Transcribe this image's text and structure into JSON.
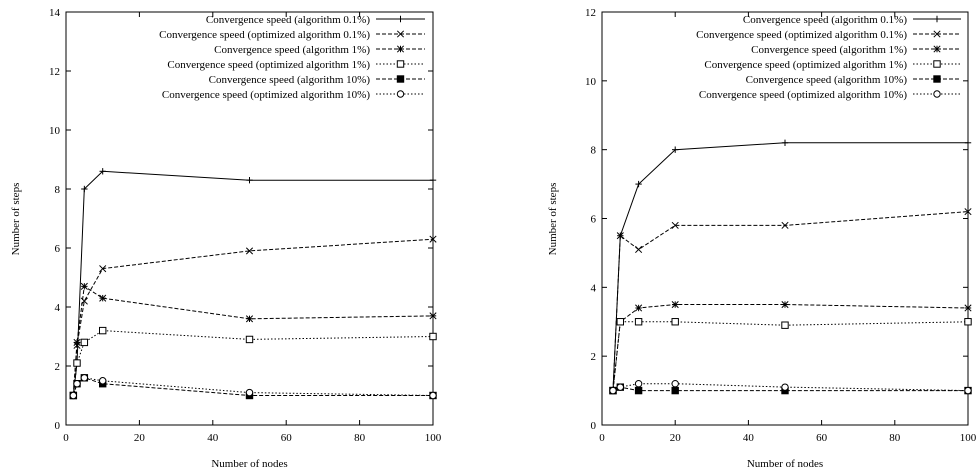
{
  "chart_data": [
    {
      "type": "line",
      "xlabel": "Number of nodes",
      "ylabel": "Number of steps",
      "xlim": [
        0,
        100
      ],
      "ylim": [
        0,
        14
      ],
      "xticks": [
        "0",
        "20",
        "40",
        "60",
        "80",
        "100"
      ],
      "yticks": [
        "0",
        "2",
        "4",
        "6",
        "8",
        "10",
        "12",
        "14"
      ],
      "legend_position": "top-right",
      "series": [
        {
          "name": "Convergence speed (algorithm 0.1%)",
          "marker": "plus",
          "dash": "solid",
          "x": [
            2,
            3,
            5,
            10,
            50,
            100
          ],
          "y": [
            1.0,
            2.1,
            8.0,
            8.6,
            8.3,
            8.3
          ]
        },
        {
          "name": "Convergence speed (optimized algorithm 0.1%)",
          "marker": "cross",
          "dash": "dashed",
          "x": [
            2,
            3,
            5,
            10,
            50,
            100
          ],
          "y": [
            1.0,
            2.7,
            4.2,
            5.3,
            5.9,
            6.3
          ]
        },
        {
          "name": "Convergence speed (algorithm 1%)",
          "marker": "star",
          "dash": "dashed",
          "x": [
            2,
            3,
            5,
            10,
            50,
            100
          ],
          "y": [
            1.0,
            2.8,
            4.7,
            4.3,
            3.6,
            3.7
          ]
        },
        {
          "name": "Convergence speed (optimized algorithm 1%)",
          "marker": "square",
          "dash": "dotted",
          "x": [
            2,
            3,
            5,
            10,
            50,
            100
          ],
          "y": [
            1.0,
            2.1,
            2.8,
            3.2,
            2.9,
            3.0
          ]
        },
        {
          "name": "Convergence speed (algorithm 10%)",
          "marker": "filled-square",
          "dash": "dashed",
          "x": [
            2,
            3,
            5,
            10,
            50,
            100
          ],
          "y": [
            1.0,
            1.4,
            1.6,
            1.4,
            1.0,
            1.0
          ]
        },
        {
          "name": "Convergence speed (optimized algorithm 10%)",
          "marker": "circle",
          "dash": "dotted",
          "x": [
            2,
            3,
            5,
            10,
            50,
            100
          ],
          "y": [
            1.0,
            1.4,
            1.6,
            1.5,
            1.1,
            1.0
          ]
        }
      ]
    },
    {
      "type": "line",
      "xlabel": "Number of nodes",
      "ylabel": "Number of steps",
      "xlim": [
        0,
        100
      ],
      "ylim": [
        0,
        12
      ],
      "xticks": [
        "0",
        "20",
        "40",
        "60",
        "80",
        "100"
      ],
      "yticks": [
        "0",
        "2",
        "4",
        "6",
        "8",
        "10",
        "12"
      ],
      "legend_position": "top-right",
      "series": [
        {
          "name": "Convergence speed (algorithm 0.1%)",
          "marker": "plus",
          "dash": "solid",
          "x": [
            3,
            5,
            10,
            20,
            50,
            100
          ],
          "y": [
            1.0,
            5.5,
            7.0,
            8.0,
            8.2,
            8.2
          ]
        },
        {
          "name": "Convergence speed (optimized algorithm 0.1%)",
          "marker": "cross",
          "dash": "dashed",
          "x": [
            3,
            5,
            10,
            20,
            50,
            100
          ],
          "y": [
            1.0,
            5.5,
            5.1,
            5.8,
            5.8,
            6.2
          ]
        },
        {
          "name": "Convergence speed (algorithm 1%)",
          "marker": "star",
          "dash": "dashed",
          "x": [
            3,
            5,
            10,
            20,
            50,
            100
          ],
          "y": [
            1.0,
            3.0,
            3.4,
            3.5,
            3.5,
            3.4
          ]
        },
        {
          "name": "Convergence speed (optimized algorithm 1%)",
          "marker": "square",
          "dash": "dotted",
          "x": [
            3,
            5,
            10,
            20,
            50,
            100
          ],
          "y": [
            1.0,
            3.0,
            3.0,
            3.0,
            2.9,
            3.0
          ]
        },
        {
          "name": "Convergence speed (algorithm 10%)",
          "marker": "filled-square",
          "dash": "dashed",
          "x": [
            3,
            5,
            10,
            20,
            50,
            100
          ],
          "y": [
            1.0,
            1.1,
            1.0,
            1.0,
            1.0,
            1.0
          ]
        },
        {
          "name": "Convergence speed (optimized algorithm 10%)",
          "marker": "circle",
          "dash": "dotted",
          "x": [
            3,
            5,
            10,
            20,
            50,
            100
          ],
          "y": [
            1.0,
            1.1,
            1.2,
            1.2,
            1.1,
            1.0
          ]
        }
      ]
    }
  ]
}
